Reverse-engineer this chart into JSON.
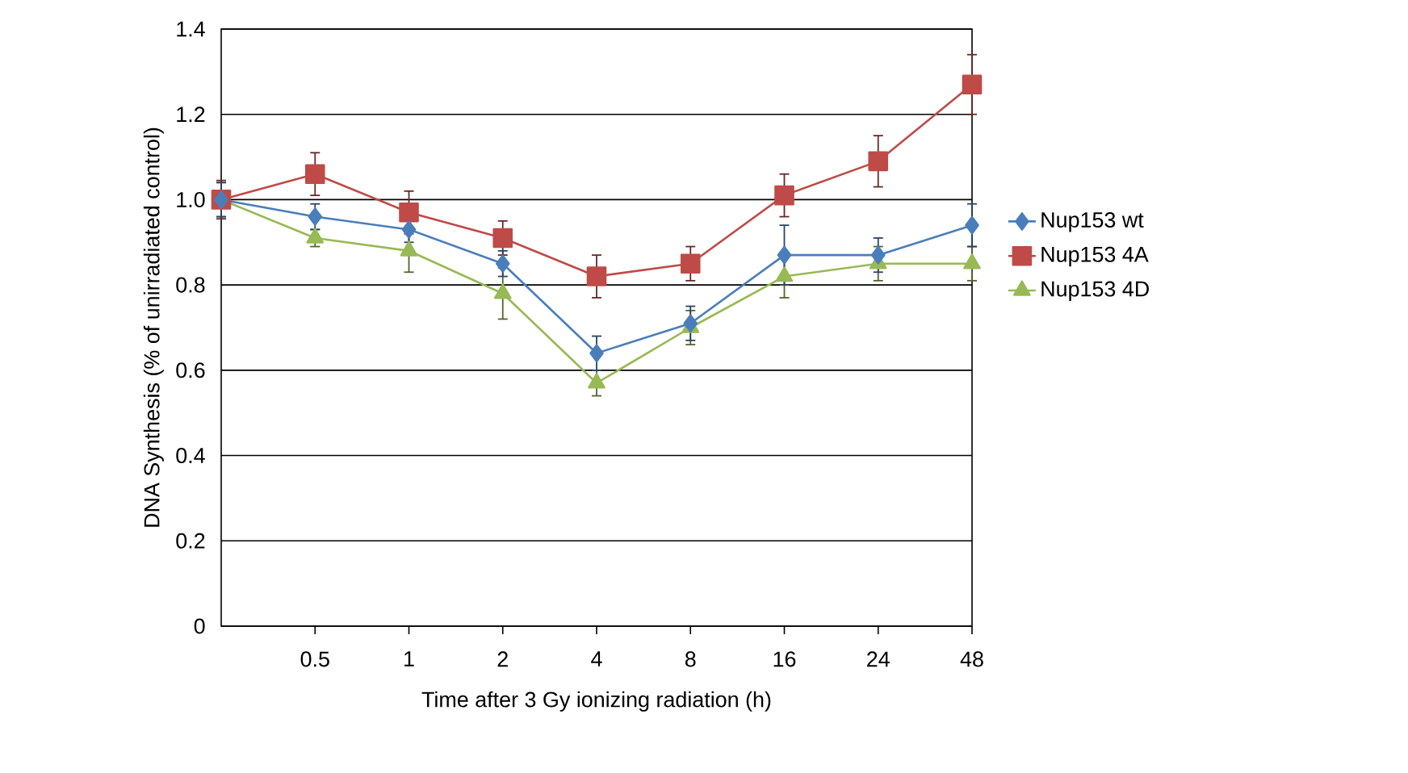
{
  "chart_data": {
    "type": "line",
    "xlabel": "Time after 3 Gy ionizing radiation (h)",
    "ylabel": "DNA Synthesis (% of unirradiated control)",
    "categories": [
      null,
      "0.5",
      "1",
      "2",
      "4",
      "8",
      "16",
      "24",
      "48"
    ],
    "series": [
      {
        "name": "Nup153 wt",
        "color": "#4a7ebb",
        "marker": "diamond",
        "values": [
          1.0,
          0.96,
          0.93,
          0.85,
          0.64,
          0.71,
          0.87,
          0.87,
          0.94
        ],
        "errors": [
          0.04,
          0.03,
          0.03,
          0.03,
          0.04,
          0.04,
          0.07,
          0.04,
          0.05
        ]
      },
      {
        "name": "Nup153 4A",
        "color": "#be4b48",
        "marker": "square",
        "values": [
          1.0,
          1.06,
          0.97,
          0.91,
          0.82,
          0.85,
          1.01,
          1.09,
          1.27
        ],
        "errors": [
          0.045,
          0.05,
          0.05,
          0.04,
          0.05,
          0.04,
          0.05,
          0.06,
          0.07
        ]
      },
      {
        "name": "Nup153 4D",
        "color": "#98b954",
        "marker": "triangle",
        "values": [
          1.0,
          0.91,
          0.88,
          0.78,
          0.57,
          0.7,
          0.82,
          0.85,
          0.85
        ],
        "errors": [
          0.04,
          0.02,
          0.05,
          0.06,
          0.03,
          0.04,
          0.05,
          0.04,
          0.04
        ]
      }
    ],
    "ylim": [
      0,
      1.4
    ],
    "yticks": [
      0,
      0.2,
      0.4,
      0.6,
      0.8,
      {
        "value": 1.0,
        "label": "1.0"
      },
      1.2,
      1.4
    ],
    "grid": "y",
    "legend": "right"
  }
}
